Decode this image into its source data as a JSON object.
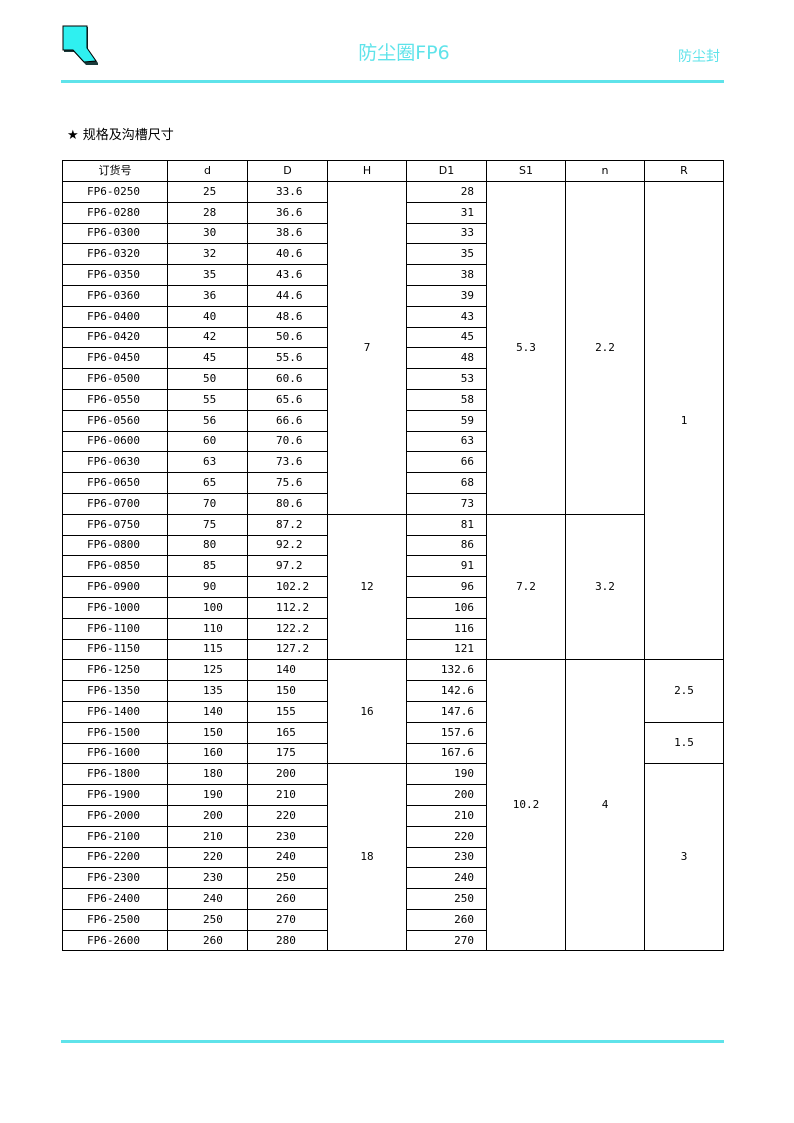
{
  "header": {
    "title": "防尘圈FP6",
    "category": "防尘封",
    "accent_color": "#5fe3ea",
    "logo_icon": "seal-profile-icon"
  },
  "section_title": "★ 规格及沟槽尺寸",
  "table": {
    "columns": [
      "订货号",
      "d",
      "D",
      "H",
      "D1",
      "S1",
      "n",
      "R"
    ],
    "rows": [
      [
        "FP6-0250",
        "25",
        "33.6",
        "28"
      ],
      [
        "FP6-0280",
        "28",
        "36.6",
        "31"
      ],
      [
        "FP6-0300",
        "30",
        "38.6",
        "33"
      ],
      [
        "FP6-0320",
        "32",
        "40.6",
        "35"
      ],
      [
        "FP6-0350",
        "35",
        "43.6",
        "38"
      ],
      [
        "FP6-0360",
        "36",
        "44.6",
        "39"
      ],
      [
        "FP6-0400",
        "40",
        "48.6",
        "43"
      ],
      [
        "FP6-0420",
        "42",
        "50.6",
        "45"
      ],
      [
        "FP6-0450",
        "45",
        "55.6",
        "48"
      ],
      [
        "FP6-0500",
        "50",
        "60.6",
        "53"
      ],
      [
        "FP6-0550",
        "55",
        "65.6",
        "58"
      ],
      [
        "FP6-0560",
        "56",
        "66.6",
        "59"
      ],
      [
        "FP6-0600",
        "60",
        "70.6",
        "63"
      ],
      [
        "FP6-0630",
        "63",
        "73.6",
        "66"
      ],
      [
        "FP6-0650",
        "65",
        "75.6",
        "68"
      ],
      [
        "FP6-0700",
        "70",
        "80.6",
        "73"
      ],
      [
        "FP6-0750",
        "75",
        "87.2",
        "81"
      ],
      [
        "FP6-0800",
        "80",
        "92.2",
        "86"
      ],
      [
        "FP6-0850",
        "85",
        "97.2",
        "91"
      ],
      [
        "FP6-0900",
        "90",
        "102.2",
        "96"
      ],
      [
        "FP6-1000",
        "100",
        "112.2",
        "106"
      ],
      [
        "FP6-1100",
        "110",
        "122.2",
        "116"
      ],
      [
        "FP6-1150",
        "115",
        "127.2",
        "121"
      ],
      [
        "FP6-1250",
        "125",
        "140",
        "132.6"
      ],
      [
        "FP6-1350",
        "135",
        "150",
        "142.6"
      ],
      [
        "FP6-1400",
        "140",
        "155",
        "147.6"
      ],
      [
        "FP6-1500",
        "150",
        "165",
        "157.6"
      ],
      [
        "FP6-1600",
        "160",
        "175",
        "167.6"
      ],
      [
        "FP6-1800",
        "180",
        "200",
        "190"
      ],
      [
        "FP6-1900",
        "190",
        "210",
        "200"
      ],
      [
        "FP6-2000",
        "200",
        "220",
        "210"
      ],
      [
        "FP6-2100",
        "210",
        "230",
        "220"
      ],
      [
        "FP6-2200",
        "220",
        "240",
        "230"
      ],
      [
        "FP6-2300",
        "230",
        "250",
        "240"
      ],
      [
        "FP6-2400",
        "240",
        "260",
        "250"
      ],
      [
        "FP6-2500",
        "250",
        "270",
        "260"
      ],
      [
        "FP6-2600",
        "260",
        "280",
        "270"
      ]
    ],
    "H_groups": [
      {
        "value": "7",
        "rows": 16
      },
      {
        "value": "12",
        "rows": 7
      },
      {
        "value": "16",
        "rows": 5
      },
      {
        "value": "18",
        "rows": 9
      }
    ],
    "S1_groups": [
      {
        "value": "5.3",
        "rows": 16
      },
      {
        "value": "7.2",
        "rows": 7
      },
      {
        "value": "10.2",
        "rows": 14
      }
    ],
    "n_groups": [
      {
        "value": "2.2",
        "rows": 16
      },
      {
        "value": "3.2",
        "rows": 7
      },
      {
        "value": "4",
        "rows": 14
      }
    ],
    "R_groups": [
      {
        "value": "1",
        "rows": 23
      },
      {
        "value": "2.5",
        "rows": 3
      },
      {
        "value": "1.5",
        "rows": 2
      },
      {
        "value": "3",
        "rows": 9
      }
    ]
  }
}
